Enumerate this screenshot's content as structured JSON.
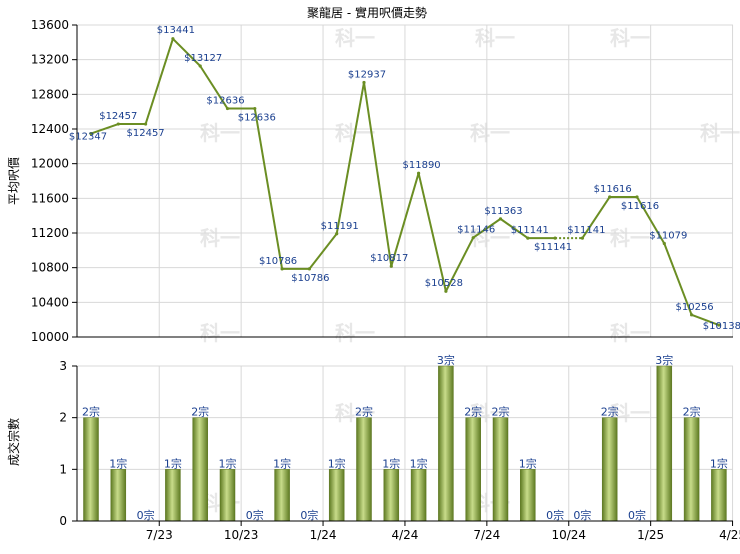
{
  "chart_data": [
    {
      "type": "line",
      "title": "聚龍居 - 實用呎價走勢",
      "ylabel": "平均呎價",
      "ylim": [
        10000,
        13600
      ],
      "yticks": [
        10000,
        10400,
        10800,
        11200,
        11600,
        12000,
        12400,
        12800,
        13200,
        13600
      ],
      "x_ticks": [
        "7/23",
        "10/23",
        "1/24",
        "4/24",
        "7/24",
        "10/24",
        "1/25",
        "4/25"
      ],
      "grid": true,
      "line_color": "#6b8e23",
      "values": [
        12347,
        12457,
        12457,
        13441,
        13127,
        12636,
        12636,
        10786,
        10786,
        11191,
        12937,
        10817,
        11890,
        10528,
        11146,
        11363,
        11141,
        11141,
        11141,
        11616,
        11616,
        11079,
        10256,
        10138
      ],
      "labels": [
        "$12347",
        "$12457",
        "$12457",
        "$13441",
        "$13127",
        "$12636",
        "$12636",
        "$10786",
        "$10786",
        "$11191",
        "$12937",
        "$10817",
        "$11890",
        "$10528",
        "$11146",
        "$11363",
        "$11141",
        "$11141",
        "$11141",
        "$11616",
        "$11616",
        "$11079",
        "$10256",
        "$10138"
      ],
      "estimated_points": [
        2,
        6,
        8,
        17,
        20
      ]
    },
    {
      "type": "bar",
      "ylabel": "成交宗數",
      "ylim": [
        0,
        3
      ],
      "yticks": [
        0,
        1,
        2,
        3
      ],
      "x_ticks": [
        "7/23",
        "10/23",
        "1/24",
        "4/24",
        "7/24",
        "10/24",
        "1/25",
        "4/25"
      ],
      "grid": true,
      "bar_color": "#7d9a3a",
      "values": [
        2,
        1,
        0,
        1,
        2,
        1,
        0,
        1,
        0,
        1,
        2,
        1,
        1,
        3,
        2,
        2,
        1,
        0,
        0,
        2,
        0,
        3,
        2,
        1
      ],
      "labels": [
        "2宗",
        "1宗",
        "0宗",
        "1宗",
        "2宗",
        "1宗",
        "0宗",
        "1宗",
        "0宗",
        "1宗",
        "2宗",
        "1宗",
        "1宗",
        "3宗",
        "2宗",
        "2宗",
        "1宗",
        "0宗",
        "0宗",
        "2宗",
        "0宗",
        "3宗",
        "2宗",
        "1宗"
      ]
    }
  ],
  "watermark": "科一"
}
